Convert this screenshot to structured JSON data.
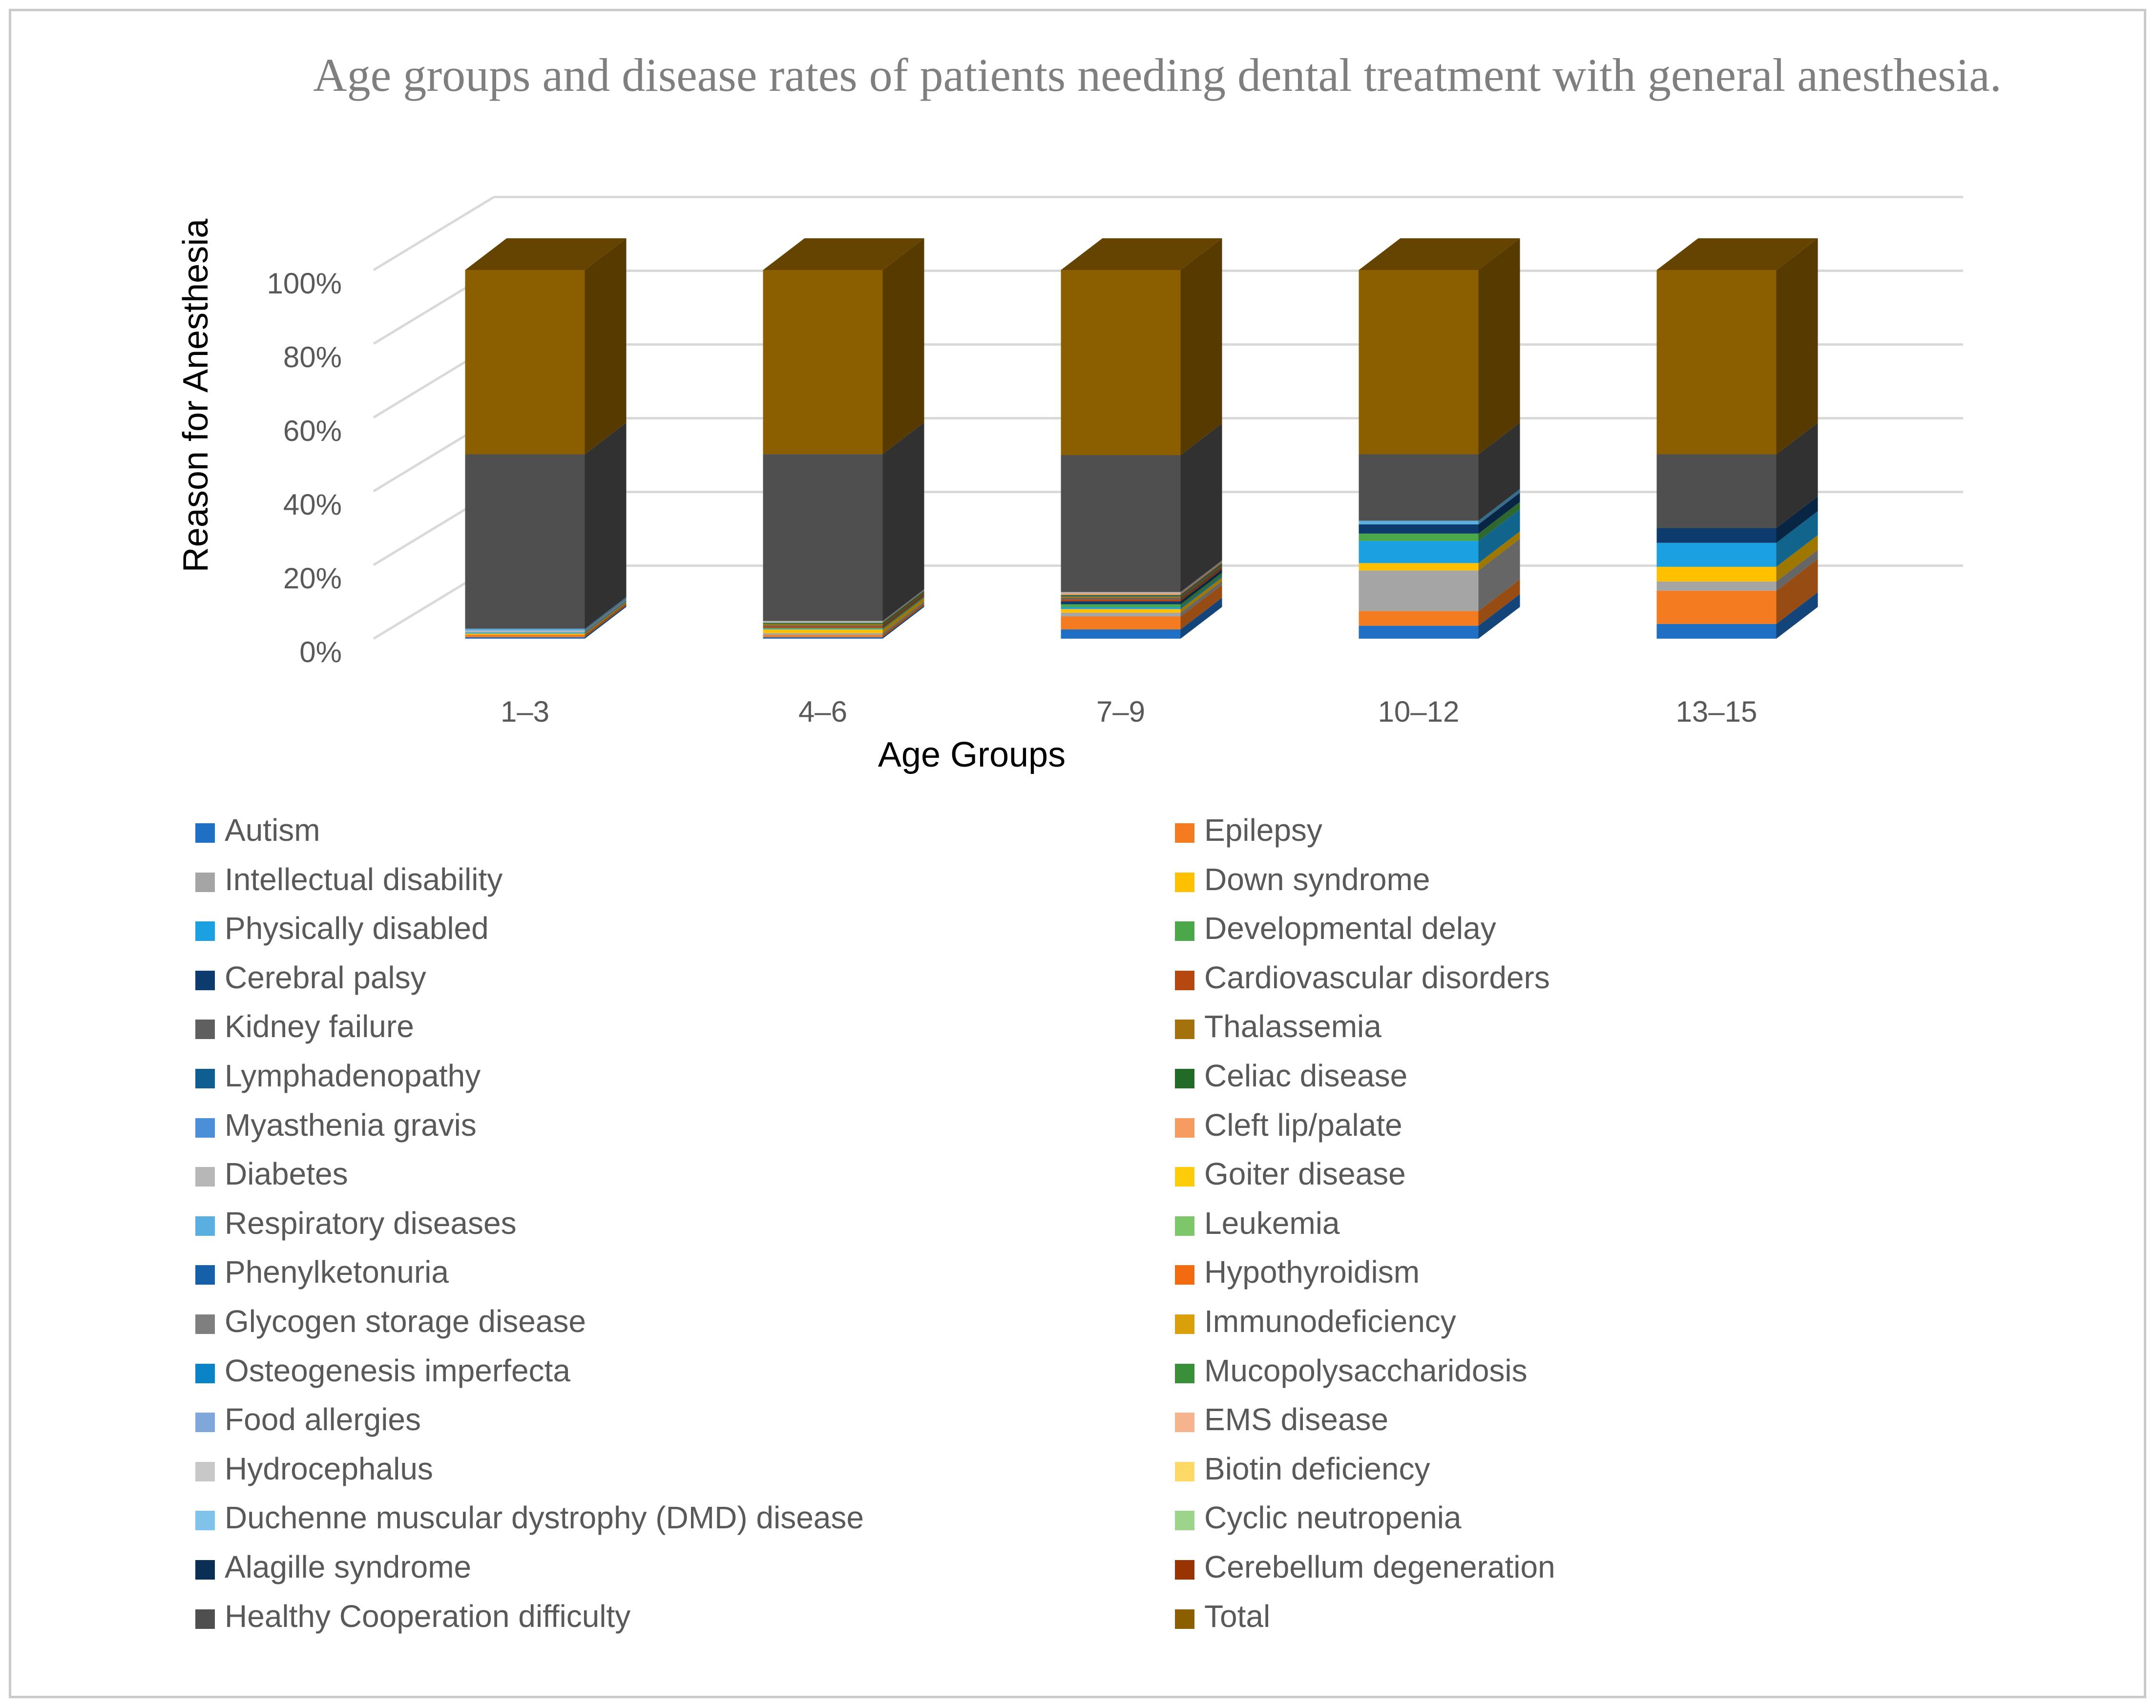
{
  "chart_data": {
    "type": "bar",
    "subtype": "stacked-100-3d",
    "title": "Age groups and disease rates of patients needing dental treatment with general anesthesia.",
    "xlabel": "Age Groups",
    "ylabel": "Reason for Anesthesia",
    "ylim": [
      0,
      100
    ],
    "yticks": [
      "0%",
      "20%",
      "40%",
      "60%",
      "80%",
      "100%"
    ],
    "grid": true,
    "legend_position": "bottom",
    "categories": [
      "1–3",
      "4–6",
      "7–9",
      "10–12",
      "13–15"
    ],
    "series": [
      {
        "name": "Autism",
        "color": "#1f6fc5",
        "values": [
          0.4,
          0.4,
          2.5,
          3.5,
          4
        ]
      },
      {
        "name": "Epilepsy",
        "color": "#f47b20",
        "values": [
          0.7,
          0.6,
          3.5,
          4,
          9
        ]
      },
      {
        "name": "Intellectual disability",
        "color": "#a5a5a5",
        "values": [
          0,
          0.5,
          1,
          11,
          2.5
        ]
      },
      {
        "name": "Down syndrome",
        "color": "#ffc000",
        "values": [
          0.3,
          1,
          1,
          2,
          4
        ]
      },
      {
        "name": "Physically disabled",
        "color": "#1ba1e2",
        "values": [
          0.3,
          0.2,
          0.5,
          6,
          6.5
        ]
      },
      {
        "name": "Developmental delay",
        "color": "#4aa84a",
        "values": [
          0,
          0.2,
          0.8,
          2,
          0
        ]
      },
      {
        "name": "Cerebral palsy",
        "color": "#0d3b6e",
        "values": [
          0,
          0,
          0.8,
          2.5,
          4
        ]
      },
      {
        "name": "Cardiovascular disorders",
        "color": "#b5480f",
        "values": [
          0,
          0.4,
          0.5,
          0,
          0
        ]
      },
      {
        "name": "Kidney failure",
        "color": "#5f5f5f",
        "values": [
          0,
          0.3,
          0.4,
          0,
          0
        ]
      },
      {
        "name": "Thalassemia",
        "color": "#a4720c",
        "values": [
          0,
          0.4,
          0.4,
          0,
          0
        ]
      },
      {
        "name": "Lymphadenopathy",
        "color": "#0f5e91",
        "values": [
          0,
          0,
          0.2,
          0,
          0
        ]
      },
      {
        "name": "Celiac disease",
        "color": "#226b26",
        "values": [
          0,
          0.3,
          0.2,
          0,
          0
        ]
      },
      {
        "name": "Myasthenia gravis",
        "color": "#4a8fd8",
        "values": [
          0,
          0,
          0,
          0,
          0
        ]
      },
      {
        "name": "Cleft lip/palate",
        "color": "#f79c60",
        "values": [
          0,
          0,
          0.4,
          0,
          0
        ]
      },
      {
        "name": "Diabetes",
        "color": "#b7b7b7",
        "values": [
          0.5,
          0.5,
          0.4,
          0,
          0
        ]
      },
      {
        "name": "Goiter disease",
        "color": "#ffcc0a",
        "values": [
          0,
          0,
          0,
          0,
          0
        ]
      },
      {
        "name": "Respiratory diseases",
        "color": "#5aaee0",
        "values": [
          0.5,
          0,
          0,
          1,
          0
        ]
      },
      {
        "name": "Leukemia",
        "color": "#7dc66a",
        "values": [
          0,
          0,
          0,
          0,
          0
        ]
      },
      {
        "name": "Phenylketonuria",
        "color": "#1560a8",
        "values": [
          0,
          0,
          0,
          0,
          0
        ]
      },
      {
        "name": "Hypothyroidism",
        "color": "#f26b10",
        "values": [
          0,
          0,
          0,
          0,
          0
        ]
      },
      {
        "name": "Glycogen storage disease",
        "color": "#7f7f7f",
        "values": [
          0,
          0,
          0,
          0,
          0
        ]
      },
      {
        "name": "Immunodeficiency",
        "color": "#d9a00c",
        "values": [
          0,
          0,
          0,
          0,
          0
        ]
      },
      {
        "name": "Osteogenesis imperfecta",
        "color": "#0a84c6",
        "values": [
          0,
          0,
          0,
          0,
          0
        ]
      },
      {
        "name": "Mucopolysaccharidosis",
        "color": "#3a8f3a",
        "values": [
          0,
          0,
          0,
          0,
          0
        ]
      },
      {
        "name": "Food allergies",
        "color": "#7fa7d9",
        "values": [
          0,
          0,
          0,
          0,
          0
        ]
      },
      {
        "name": "EMS disease",
        "color": "#f6b48e",
        "values": [
          0,
          0,
          0,
          0,
          0
        ]
      },
      {
        "name": "Hydrocephalus",
        "color": "#c8c8c8",
        "values": [
          0,
          0,
          0,
          0,
          0
        ]
      },
      {
        "name": "Biotin deficiency",
        "color": "#ffd966",
        "values": [
          0,
          0,
          0,
          0,
          0
        ]
      },
      {
        "name": "Duchenne muscular dystrophy (DMD) disease",
        "color": "#7fc3ea",
        "values": [
          0,
          0,
          0,
          0,
          0
        ]
      },
      {
        "name": "Cyclic neutropenia",
        "color": "#9dd48c",
        "values": [
          0,
          0,
          0,
          0,
          0
        ]
      },
      {
        "name": "Alagille syndrome",
        "color": "#0b2e55",
        "values": [
          0,
          0,
          0,
          0,
          0
        ]
      },
      {
        "name": "Cerebellum degeneration",
        "color": "#993300",
        "values": [
          0,
          0,
          0,
          0,
          0
        ]
      },
      {
        "name": "Healthy Cooperation difficulty",
        "color": "#4f4f4f",
        "values": [
          47.3,
          45.3,
          37,
          18,
          20
        ]
      },
      {
        "name": "Total",
        "color": "#8b5e00",
        "values": [
          50,
          50,
          50,
          50,
          50
        ]
      }
    ]
  }
}
